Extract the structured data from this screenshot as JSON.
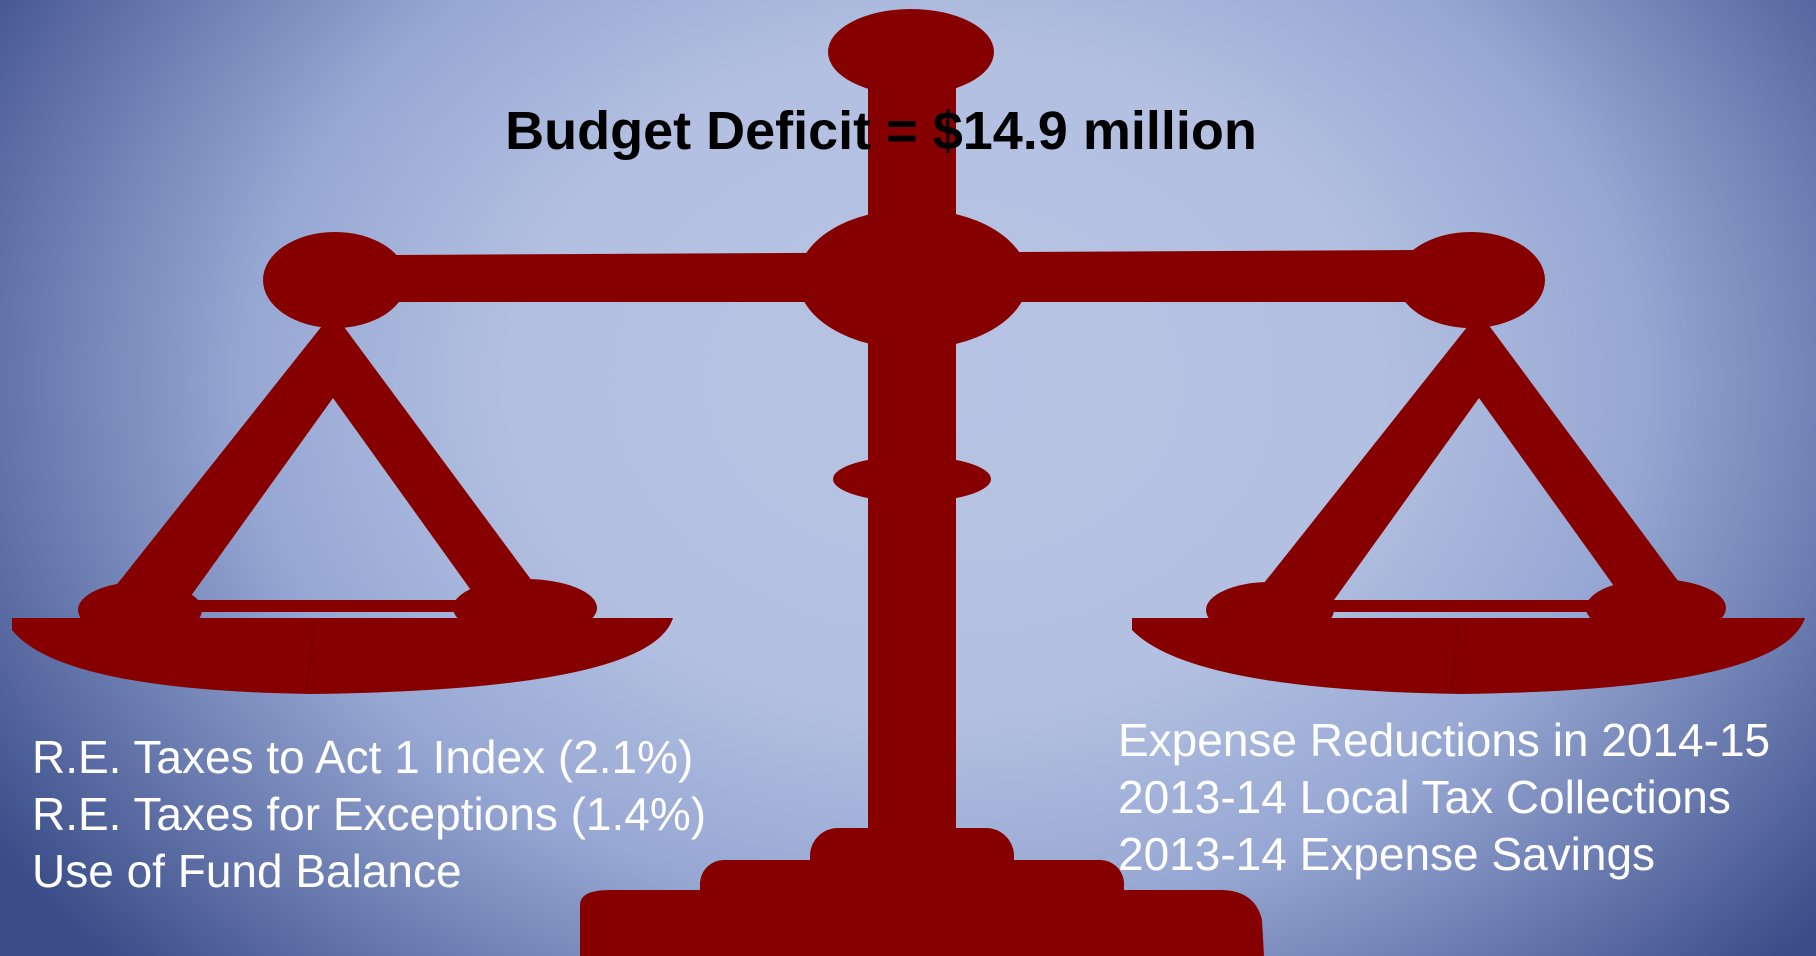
{
  "title": {
    "label": "Budget Deficit =",
    "amount": "$14.9 million"
  },
  "left_pan_items": [
    "R.E. Taxes to Act 1 Index (2.1%)",
    "R.E. Taxes for Exceptions (1.4%)",
    "Use of Fund Balance"
  ],
  "right_pan_items": [
    "Expense Reductions in 2014-15",
    "2013-14 Local Tax Collections",
    "2013-14 Expense Savings"
  ],
  "colors": {
    "scale": "#870000",
    "text_on_background": "#ffffff",
    "title_text": "#000000"
  },
  "icons": [
    "balance-scale-icon"
  ]
}
